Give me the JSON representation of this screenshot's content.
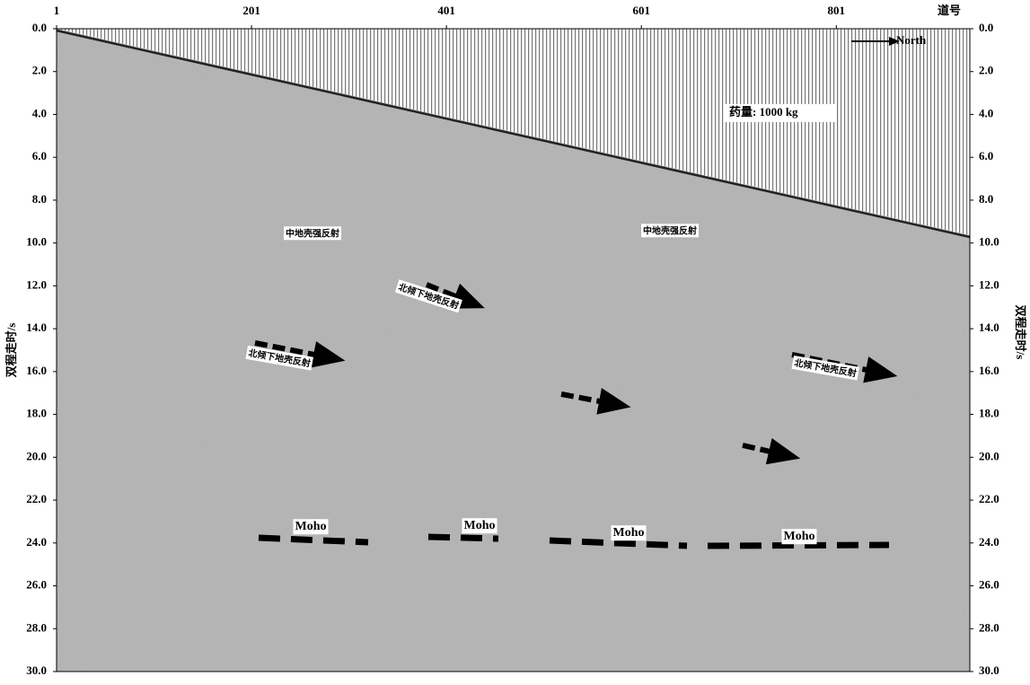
{
  "chart_data": {
    "type": "seismic-section",
    "x_label": "道号",
    "y_label": "双程走时/s",
    "y2_label": "双程走时/s",
    "xlim": [
      1,
      938
    ],
    "xticks": [
      1,
      201,
      401,
      601,
      801
    ],
    "ylim": [
      0,
      30
    ],
    "yticks": [
      {
        "value": 0,
        "label": "0.0"
      },
      {
        "value": 2,
        "label": "2.0"
      },
      {
        "value": 4,
        "label": "4.0"
      },
      {
        "value": 6,
        "label": "6.0"
      },
      {
        "value": 8,
        "label": "8.0"
      },
      {
        "value": 10,
        "label": "10.0"
      },
      {
        "value": 12,
        "label": "12.0"
      },
      {
        "value": 14,
        "label": "14.0"
      },
      {
        "value": 16,
        "label": "16.0"
      },
      {
        "value": 18,
        "label": "18.0"
      },
      {
        "value": 20,
        "label": "20.0"
      },
      {
        "value": 22,
        "label": "22.0"
      },
      {
        "value": 24,
        "label": "24.0"
      },
      {
        "value": 26,
        "label": "26.0"
      },
      {
        "value": 28,
        "label": "28.0"
      },
      {
        "value": 30,
        "label": "30.0"
      }
    ],
    "annotations": {
      "direction": "North",
      "charge": "药量: 1000 kg",
      "mid_crust": [
        "中地壳强反射",
        "中地壳强反射"
      ],
      "lower_crust": [
        "北倾下地壳反射",
        "北倾下地壳反射",
        "北倾下地壳反射"
      ],
      "moho": [
        "Moho",
        "Moho",
        "Moho",
        "Moho"
      ]
    }
  }
}
